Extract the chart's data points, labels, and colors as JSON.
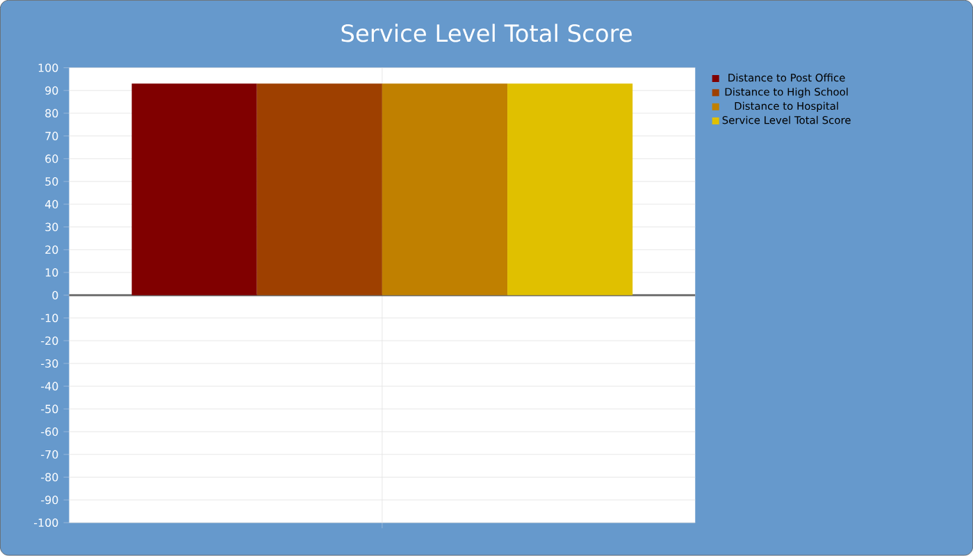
{
  "chart_data": {
    "type": "bar",
    "title": "Service Level Total Score",
    "categories": [
      null
    ],
    "series": [
      {
        "name": "Distance to Post Office",
        "color": "#800000",
        "values": [
          93
        ]
      },
      {
        "name": "Distance to High School",
        "color": "#9e4000",
        "values": [
          93
        ]
      },
      {
        "name": "Distance to Hospital",
        "color": "#c08000",
        "values": [
          93
        ]
      },
      {
        "name": "Service Level Total Score",
        "color": "#e0c000",
        "values": [
          93
        ]
      }
    ],
    "ylim": [
      -100,
      100
    ],
    "yticks": [
      -100,
      -90,
      -80,
      -70,
      -60,
      -50,
      -40,
      -30,
      -20,
      -10,
      0,
      10,
      20,
      30,
      40,
      50,
      60,
      70,
      80,
      90,
      100
    ],
    "grid": true,
    "legend": "top right"
  }
}
